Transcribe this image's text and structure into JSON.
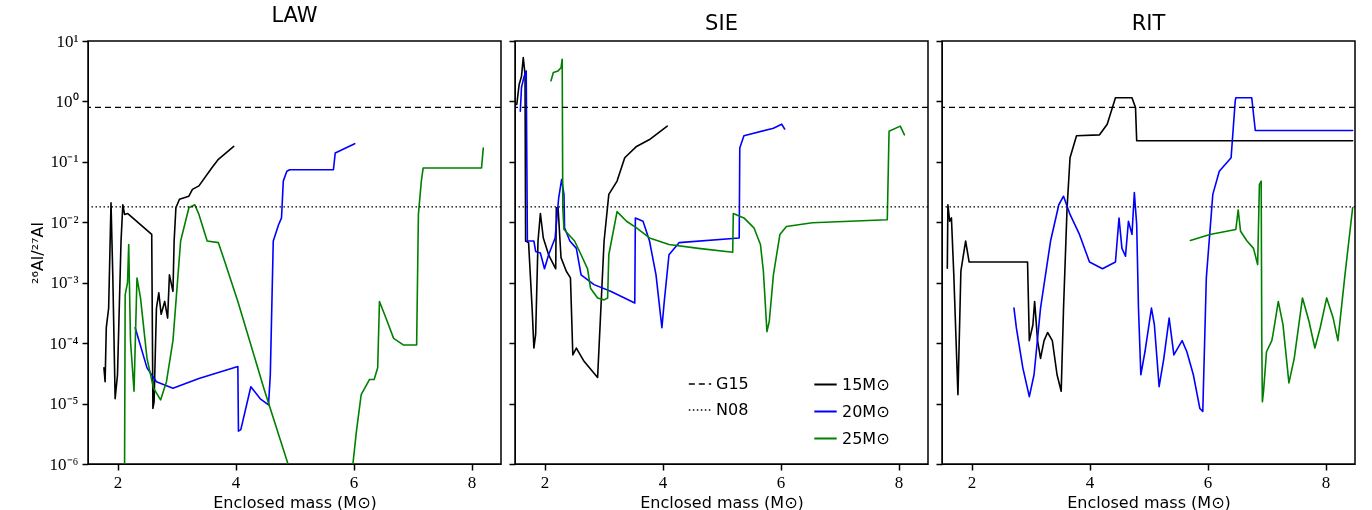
{
  "chart_data": [
    {
      "type": "line",
      "title": "LAW",
      "xlabel": "Enclosed mass (M⊙)",
      "ylabel": "²⁶Al/²⁷Al",
      "log": "y",
      "xlim": [
        1.5,
        8.5
      ],
      "xticks": [
        2,
        4,
        6,
        8
      ],
      "ylim": [
        1e-06,
        10
      ],
      "yticks": [
        {
          "value": 1e-06,
          "label": "10⁻⁶"
        },
        {
          "value": 1e-05,
          "label": "10⁻⁵"
        },
        {
          "value": 0.0001,
          "label": "10⁻⁴"
        },
        {
          "value": 0.001,
          "label": "10⁻³"
        },
        {
          "value": 0.01,
          "label": "10⁻²"
        },
        {
          "value": 0.1,
          "label": "10⁻¹"
        },
        {
          "value": 1,
          "label": "10⁰"
        },
        {
          "value": 10,
          "label": "10¹"
        }
      ],
      "ref_lines": [
        {
          "axis": "y",
          "value": 0.8,
          "color": "#000000",
          "line_style": "dashed"
        },
        {
          "axis": "y",
          "value": 0.018,
          "color": "#000000",
          "line_style": "dotted"
        }
      ],
      "series": [
        {
          "color": "#000000",
          "x": [
            1.77,
            1.79,
            1.81,
            1.85,
            1.89,
            1.92,
            1.96,
            2.0,
            2.06,
            2.09,
            2.12,
            2.17,
            2.58,
            2.6,
            2.62,
            2.66,
            2.7,
            2.74,
            2.8,
            2.85,
            2.88,
            2.94,
            2.96,
            2.99,
            3.05,
            3.21,
            3.27,
            3.38,
            3.6,
            3.71,
            3.97
          ],
          "values": [
            3.9e-05,
            2.3e-05,
            0.00018,
            0.00038,
            0.021,
            0.00135,
            1.2e-05,
            3e-05,
            0.0049,
            0.0195,
            0.0135,
            0.014,
            0.0063,
            8.3e-06,
            1.07e-05,
            0.00038,
            0.00068,
            0.0003,
            0.00049,
            0.00026,
            0.00135,
            0.00072,
            0.0049,
            0.0174,
            0.024,
            0.027,
            0.035,
            0.04,
            0.08,
            0.11,
            0.18
          ]
        },
        {
          "color": "#0000ff",
          "x": [
            2.3,
            2.5,
            2.66,
            2.94,
            3.38,
            4.04,
            4.05,
            4.09,
            4.26,
            4.42,
            4.56,
            4.59,
            4.64,
            4.73,
            4.78,
            4.81,
            4.87,
            4.92,
            5.66,
            5.69,
            6.02
          ],
          "values": [
            0.00018,
            3.9e-05,
            2.3e-05,
            1.8e-05,
            2.6e-05,
            4.1e-05,
            3.5e-06,
            3.7e-06,
            1.9e-05,
            1.2e-05,
            9.5e-06,
            3e-05,
            0.0049,
            0.0091,
            0.0118,
            0.048,
            0.07,
            0.074,
            0.074,
            0.14,
            0.2
          ]
        },
        {
          "color": "#008000",
          "x": [
            2.12,
            2.13,
            2.17,
            2.19,
            2.22,
            2.28,
            2.33,
            2.39,
            2.5,
            2.61,
            2.73,
            2.83,
            2.94,
            3.07,
            3.21,
            3.31,
            3.38,
            3.52,
            3.71,
            3.82,
            4.04,
            4.48,
            4.89,
            5.5,
            5.99,
            6.05,
            6.13,
            6.27,
            6.35,
            6.41,
            6.44,
            6.55,
            6.68,
            6.85,
            7.07,
            7.1,
            7.15,
            7.18,
            8.17,
            8.2
          ],
          "values": [
            1e-06,
            0.00063,
            0.001,
            0.0043,
            0.00011,
            1.6e-05,
            0.0012,
            0.00056,
            5.6e-05,
            1.8e-05,
            1.15e-05,
            2.3e-05,
            0.00011,
            0.0049,
            0.0174,
            0.0195,
            0.0135,
            0.0049,
            0.0046,
            0.0022,
            0.00049,
            1.8e-05,
            1e-06,
            null,
            1e-06,
            3.5e-06,
            1.4e-05,
            2.5e-05,
            2.5e-05,
            3.9e-05,
            0.00049,
            0.00026,
            0.00012,
            9.3e-05,
            9.3e-05,
            0.0135,
            0.048,
            0.079,
            0.079,
            0.17
          ]
        }
      ]
    },
    {
      "type": "line",
      "title": "SIE",
      "xlabel": "Enclosed mass (M⊙)",
      "log": "y",
      "xlim": [
        1.5,
        8.5
      ],
      "xticks": [
        2,
        4,
        6,
        8
      ],
      "ylim": [
        1e-06,
        10
      ],
      "yticks": [
        {
          "value": 1e-06,
          "label": null
        },
        {
          "value": 1e-05,
          "label": null
        },
        {
          "value": 0.0001,
          "label": null
        },
        {
          "value": 0.001,
          "label": null
        },
        {
          "value": 0.01,
          "label": null
        },
        {
          "value": 0.1,
          "label": null
        },
        {
          "value": 1,
          "label": null
        },
        {
          "value": 10,
          "label": null
        }
      ],
      "tick_labels": "x",
      "legend": "bottom right",
      "ref_lines": [
        {
          "axis": "y",
          "value": 0.8,
          "label": "G15",
          "color": "#000000",
          "line_style": "dashed"
        },
        {
          "axis": "y",
          "value": 0.018,
          "label": "N08",
          "color": "#000000",
          "line_style": "dotted"
        }
      ],
      "series": [
        {
          "name": "15M⊙",
          "color": "#000000",
          "x": [
            1.53,
            1.57,
            1.61,
            1.64,
            1.67,
            1.68,
            1.73,
            1.79,
            1.82,
            1.85,
            1.89,
            1.93,
            1.98,
            2.07,
            2.19,
            2.2,
            2.23,
            2.28,
            2.37,
            2.44,
            2.48,
            2.54,
            2.67,
            2.9,
            3.01,
            3.09,
            3.23,
            3.36,
            3.56,
            3.78,
            4.08
          ],
          "values": [
            0.89,
            1.9,
            2.6,
            5.3,
            2.8,
            0.0049,
            0.0046,
            0.00038,
            8.3e-05,
            0.00014,
            0.0049,
            0.014,
            0.0055,
            0.0029,
            0.0017,
            0.0174,
            0.0174,
            0.0026,
            0.00155,
            0.0012,
            6.4e-05,
            8.3e-05,
            5e-05,
            2.7e-05,
            0.0049,
            0.029,
            0.048,
            0.117,
            0.18,
            0.234,
            0.39
          ]
        },
        {
          "name": "20M⊙",
          "color": "#0000ff",
          "x": [
            1.59,
            1.61,
            1.65,
            1.69,
            1.71,
            1.82,
            1.85,
            1.93,
            2.0,
            2.07,
            2.18,
            2.24,
            2.29,
            2.33,
            2.34,
            2.43,
            2.54,
            2.62,
            2.84,
            3.12,
            3.53,
            3.54,
            3.67,
            3.78,
            3.89,
            3.94,
            3.99,
            4.03,
            4.11,
            4.28,
            5.3,
            5.31,
            5.38,
            5.88,
            6.02,
            6.07
          ],
          "values": [
            0.69,
            1.7,
            2.5,
            3.2,
            0.0049,
            0.0049,
            0.0033,
            0.0031,
            0.0017,
            0.0029,
            0.0055,
            0.025,
            0.051,
            0.029,
            0.0081,
            0.0049,
            0.0037,
            0.00135,
            0.00093,
            0.00072,
            0.00046,
            0.0118,
            0.0104,
            0.0049,
            0.00135,
            0.00049,
            0.00018,
            0.00049,
            0.0029,
            0.0046,
            0.0055,
            0.17,
            0.27,
            0.36,
            0.42,
            0.35
          ]
        },
        {
          "name": "25M⊙",
          "color": "#008000",
          "x": [
            2.11,
            2.15,
            2.23,
            2.28,
            2.3,
            2.31,
            2.33,
            2.51,
            2.62,
            2.73,
            2.78,
            2.9,
            3.01,
            3.07,
            3.09,
            3.23,
            3.39,
            3.56,
            3.78,
            4.11,
            4.61,
            5.19,
            5.2,
            5.38,
            5.55,
            5.66,
            5.71,
            5.77,
            5.81,
            5.88,
            5.99,
            6.1,
            6.54,
            7.81,
            7.84,
            8.03,
            8.1
          ],
          "values": [
            2.2,
            3.0,
            3.2,
            3.6,
            5.0,
            0.0174,
            0.0076,
            0.0049,
            0.0029,
            0.0017,
            0.00081,
            0.00056,
            0.00052,
            0.00056,
            0.0029,
            0.015,
            0.0104,
            0.0081,
            0.0055,
            0.0043,
            0.0037,
            0.0032,
            0.014,
            0.0118,
            0.0081,
            0.0043,
            0.00155,
            0.000155,
            0.00023,
            0.00135,
            0.0063,
            0.0085,
            0.0098,
            0.011,
            0.32,
            0.39,
            0.28
          ]
        }
      ]
    },
    {
      "type": "line",
      "title": "RIT",
      "xlabel": "Enclosed mass (M⊙)",
      "log": "y",
      "xlim": [
        1.5,
        8.5
      ],
      "xticks": [
        2,
        4,
        6,
        8
      ],
      "ylim": [
        1e-06,
        10
      ],
      "yticks": [
        {
          "value": 1e-06,
          "label": null
        },
        {
          "value": 1e-05,
          "label": null
        },
        {
          "value": 0.0001,
          "label": null
        },
        {
          "value": 0.001,
          "label": null
        },
        {
          "value": 0.01,
          "label": null
        },
        {
          "value": 0.1,
          "label": null
        },
        {
          "value": 1,
          "label": null
        },
        {
          "value": 10,
          "label": null
        }
      ],
      "tick_labels": "x",
      "ref_lines": [
        {
          "axis": "y",
          "value": 0.8,
          "color": "#000000",
          "line_style": "dashed"
        },
        {
          "axis": "y",
          "value": 0.018,
          "color": "#000000",
          "line_style": "dotted"
        }
      ],
      "series": [
        {
          "color": "#000000",
          "x": [
            1.59,
            1.6,
            1.63,
            1.66,
            1.7,
            1.77,
            1.82,
            1.9,
            1.96,
            2.95,
            2.98,
            3.04,
            3.07,
            3.12,
            3.17,
            3.23,
            3.29,
            3.37,
            3.45,
            3.52,
            3.56,
            3.62,
            3.67,
            3.78,
            4.17,
            4.3,
            4.44,
            4.72,
            4.78,
            4.8,
            8.46
          ],
          "values": [
            0.00174,
            0.0195,
            0.0104,
            0.0118,
            0.00135,
            1.4e-05,
            0.00155,
            0.0049,
            0.0022,
            0.0022,
            0.00011,
            0.0002,
            0.00049,
            0.00011,
            5.6e-05,
            0.00011,
            0.00015,
            0.00011,
            3e-05,
            1.6e-05,
            0.00038,
            0.0174,
            0.117,
            0.27,
            0.28,
            0.42,
            1.15,
            1.15,
            0.79,
            0.224,
            0.224
          ]
        },
        {
          "color": "#0000ff",
          "x": [
            2.72,
            2.76,
            2.87,
            2.98,
            3.06,
            3.17,
            3.34,
            3.48,
            3.56,
            3.67,
            3.83,
            4.0,
            4.22,
            4.44,
            4.5,
            4.55,
            4.61,
            4.66,
            4.72,
            4.76,
            4.8,
            4.83,
            4.87,
            4.94,
            5.05,
            5.1,
            5.18,
            5.26,
            5.35,
            5.43,
            5.57,
            5.65,
            5.76,
            5.87,
            5.92,
            5.98,
            6.09,
            6.2,
            6.4,
            6.47,
            6.48,
            6.75,
            6.81,
            8.46
          ],
          "values": [
            0.00038,
            0.00018,
            3.9e-05,
            1.3e-05,
            3e-05,
            0.00038,
            0.0049,
            0.0195,
            0.027,
            0.0135,
            0.0063,
            0.0022,
            0.0017,
            0.0022,
            0.0118,
            0.0037,
            0.00275,
            0.0104,
            0.0063,
            0.031,
            0.0091,
            0.00038,
            3e-05,
            7.2e-05,
            0.00038,
            0.0002,
            1.9e-05,
            5.6e-05,
            0.00026,
            6.4e-05,
            0.00011,
            7.2e-05,
            3e-05,
            8.3e-06,
            7.4e-06,
            0.0012,
            0.029,
            0.07,
            0.117,
            1.02,
            1.15,
            1.15,
            0.33,
            0.33
          ]
        },
        {
          "color": "#008000",
          "x": [
            5.71,
            6.04,
            6.48,
            6.52,
            6.56,
            6.67,
            6.78,
            6.85,
            6.88,
            6.91,
            6.92,
            6.93,
            6.95,
            7.0,
            7.09,
            7.11,
            7.2,
            7.28,
            7.38,
            7.47,
            7.61,
            7.72,
            7.82,
            7.91,
            8.02,
            8.13,
            8.21,
            8.33,
            8.46
          ],
          "values": [
            0.005,
            0.0063,
            0.0076,
            0.016,
            0.0071,
            0.0049,
            0.0037,
            0.002,
            0.042,
            0.048,
            0.00011,
            1.07e-05,
            1.6e-05,
            7.2e-05,
            0.00011,
            0.00014,
            0.00049,
            0.0002,
            2.2e-05,
            5.6e-05,
            0.00056,
            0.00023,
            8.3e-05,
            0.00018,
            0.00056,
            0.00026,
            0.00011,
            0.00135,
            0.0174
          ]
        }
      ]
    }
  ]
}
